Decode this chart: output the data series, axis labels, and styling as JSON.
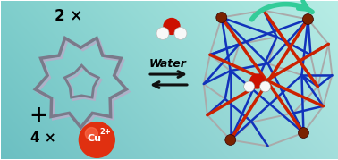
{
  "bg_color": "#7ecece",
  "text_2x": "2 ×",
  "text_plus": "+",
  "text_4x": "4 ×",
  "text_water": "Water",
  "cu_ball_color": "#e03010",
  "water_O_color": "#cc1100",
  "water_H_color": "#f8f8f8",
  "arrow_color": "#111111",
  "curve_arrow_color": "#33cc99",
  "cage_gray": "#aaaaaa",
  "cage_blue": "#1133bb",
  "cage_red": "#cc2200",
  "cage_dark_node": "#7a2200",
  "macrocycle_edge1": "#7a7a8a",
  "macrocycle_edge2": "#b0b0c8"
}
